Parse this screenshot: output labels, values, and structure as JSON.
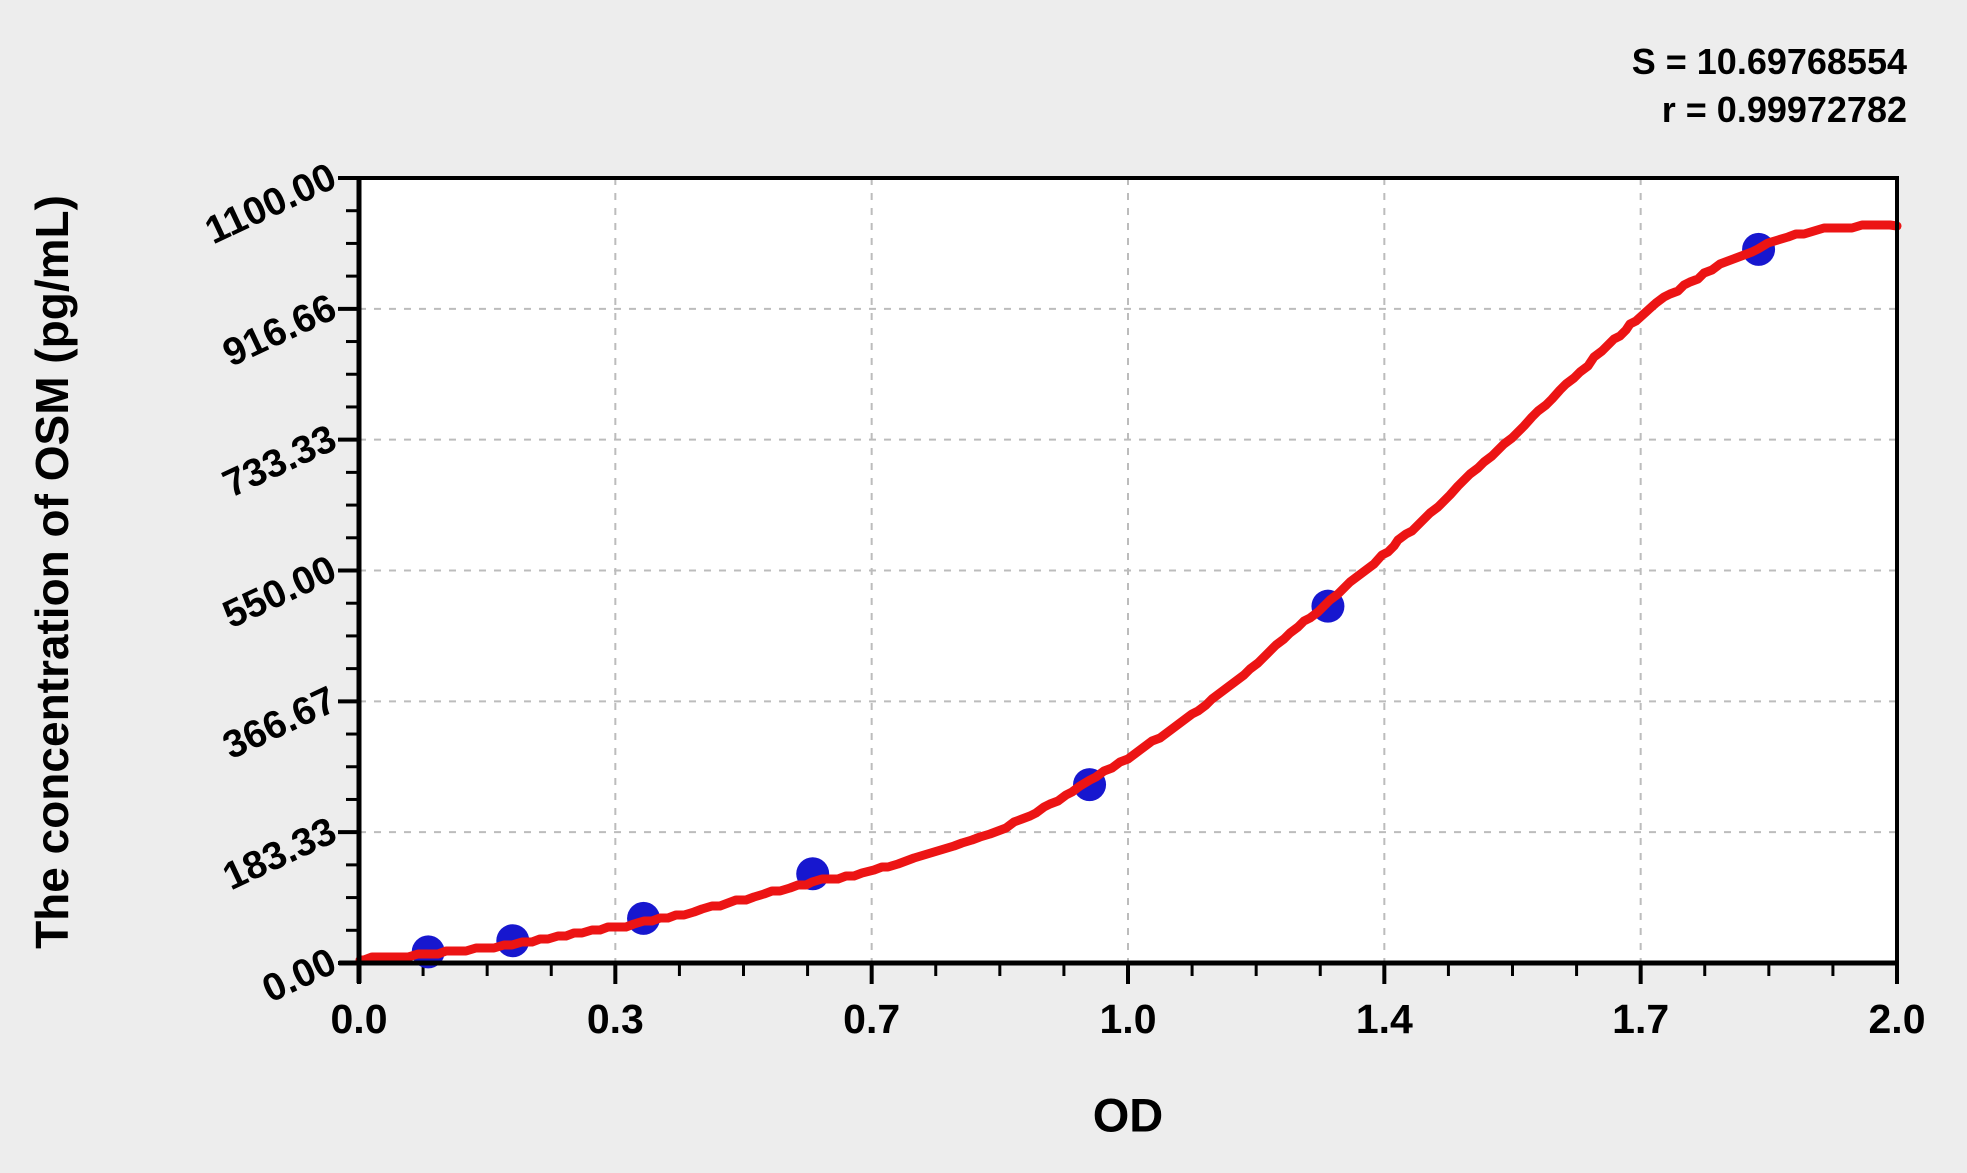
{
  "stats": {
    "s_line": "S = 10.69768554",
    "r_line": "r = 0.99972782"
  },
  "chart_data": {
    "type": "scatter",
    "title": "",
    "xlabel": "OD",
    "ylabel": "The concentration of OSM (pg/mL)",
    "xlim": [
      0.0,
      2.0
    ],
    "ylim": [
      0,
      1100
    ],
    "x_tick_labels": [
      "0.0",
      "0.3",
      "0.7",
      "1.0",
      "1.4",
      "1.7",
      "2.0"
    ],
    "y_tick_labels": [
      "0.00",
      "183.33",
      "366.67",
      "550.00",
      "733.33",
      "916.66",
      "1100.00"
    ],
    "minor_ticks_per_major": 3,
    "grid": "dashed-at-major-ticks",
    "legend_position": "none",
    "annotations": [
      "S = 10.69768554",
      "r = 0.99972782"
    ],
    "series": [
      {
        "name": "standard-points",
        "type": "scatter",
        "color": "#1717cf",
        "points": [
          [
            0.09,
            15.6
          ],
          [
            0.2,
            31.25
          ],
          [
            0.37,
            62.5
          ],
          [
            0.59,
            125
          ],
          [
            0.95,
            250
          ],
          [
            1.26,
            500
          ],
          [
            1.82,
            1000
          ]
        ]
      },
      {
        "name": "fitted-curve",
        "type": "line",
        "color": "#ec1414",
        "points": [
          [
            0.0,
            5
          ],
          [
            0.09,
            13
          ],
          [
            0.2,
            26
          ],
          [
            0.29,
            43
          ],
          [
            0.37,
            57
          ],
          [
            0.47,
            81
          ],
          [
            0.59,
            113
          ],
          [
            0.67,
            130
          ],
          [
            0.83,
            186
          ],
          [
            0.95,
            255
          ],
          [
            1.11,
            368
          ],
          [
            1.22,
            469
          ],
          [
            1.33,
            570
          ],
          [
            1.49,
            728
          ],
          [
            1.66,
            900
          ],
          [
            1.74,
            960
          ],
          [
            1.82,
            1002
          ],
          [
            1.88,
            1023
          ],
          [
            1.93,
            1031
          ],
          [
            2.0,
            1033
          ]
        ]
      }
    ],
    "colors": {
      "background": "#ededed",
      "plot_background": "#ffffff",
      "gridline": "#bcbcbc",
      "axis": "#000000",
      "text": "#000000",
      "curve": "#ec1414",
      "points": "#1717cf"
    }
  }
}
